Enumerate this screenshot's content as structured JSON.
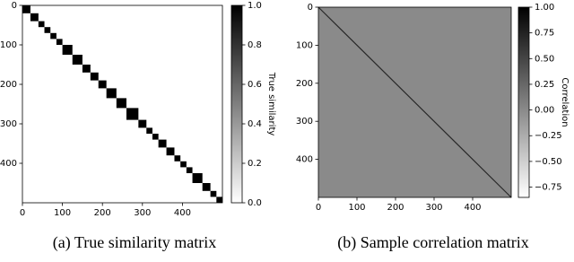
{
  "chart_data": [
    {
      "type": "block-heatmap",
      "caption": "(a) True similarity matrix",
      "colorbar_label": "True similarity",
      "colormap": "gray_r",
      "block_edges": [
        0,
        20,
        40,
        55,
        70,
        85,
        100,
        125,
        150,
        170,
        190,
        210,
        235,
        260,
        290,
        310,
        325,
        340,
        360,
        380,
        395,
        410,
        425,
        450,
        470,
        485,
        500
      ],
      "block_value": 1,
      "background_value": 0,
      "xlim": [
        0,
        500
      ],
      "ylim": [
        500,
        0
      ],
      "xticks": [
        0,
        100,
        200,
        300,
        400
      ],
      "yticks": [
        0,
        100,
        200,
        300,
        400
      ],
      "clim": [
        0,
        1
      ],
      "cticks": [
        {
          "value": 0,
          "label": "0.0"
        },
        {
          "value": 0.2,
          "label": "0.2"
        },
        {
          "value": 0.4,
          "label": "0.4"
        },
        {
          "value": 0.6,
          "label": "0.6"
        },
        {
          "value": 0.8,
          "label": "0.8"
        },
        {
          "value": 1,
          "label": "1.0"
        }
      ]
    },
    {
      "type": "diagonal-heatmap",
      "caption": "(b) Sample correlation matrix",
      "colorbar_label": "Correlation",
      "colormap": "gray_r",
      "diagonal_value": 1,
      "background_value": 0,
      "xlim": [
        0,
        500
      ],
      "ylim": [
        500,
        0
      ],
      "xticks": [
        0,
        100,
        200,
        300,
        400
      ],
      "yticks": [
        0,
        100,
        200,
        300,
        400
      ],
      "clim": [
        -0.85,
        1
      ],
      "cticks": [
        {
          "value": -0.75,
          "label": "−0.75"
        },
        {
          "value": -0.5,
          "label": "−0.50"
        },
        {
          "value": -0.25,
          "label": "−0.25"
        },
        {
          "value": 0,
          "label": "0.00"
        },
        {
          "value": 0.25,
          "label": "0.25"
        },
        {
          "value": 0.5,
          "label": "0.50"
        },
        {
          "value": 0.75,
          "label": "0.75"
        },
        {
          "value": 1,
          "label": "1.00"
        }
      ]
    }
  ]
}
